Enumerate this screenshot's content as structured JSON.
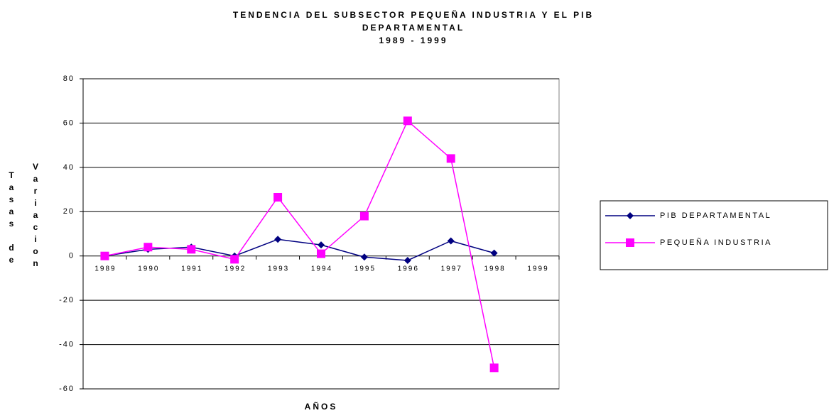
{
  "chart_data": {
    "type": "line",
    "title": [
      "TENDENCIA DEL SUBSECTOR PEQUEÑA INDUSTRIA Y EL PIB",
      "DEPARTAMENTAL",
      "1989 - 1999"
    ],
    "ylabel": [
      "Tasas de",
      "Variacion"
    ],
    "xlabel": "AÑOS",
    "categories": [
      "1989",
      "1990",
      "1991",
      "1992",
      "1993",
      "1994",
      "1995",
      "1996",
      "1997",
      "1998",
      "1999"
    ],
    "series": [
      {
        "name": "PIB DEPARTAMENTAL",
        "color": "#000080",
        "marker": "diamond",
        "values": [
          0,
          3,
          4,
          0,
          7.5,
          5,
          -0.5,
          -2,
          6.8,
          1.3,
          null
        ]
      },
      {
        "name": "PEQUEÑA INDUSTRIA",
        "color": "#ff00ff",
        "marker": "square",
        "values": [
          0,
          4,
          3,
          -1.5,
          26.5,
          1,
          18,
          61,
          44,
          -50.5,
          null
        ]
      }
    ],
    "ylim": [
      -60,
      80
    ],
    "yticks": [
      -60,
      -40,
      -20,
      0,
      20,
      40,
      60,
      80
    ],
    "grid": true,
    "legend": "right"
  }
}
